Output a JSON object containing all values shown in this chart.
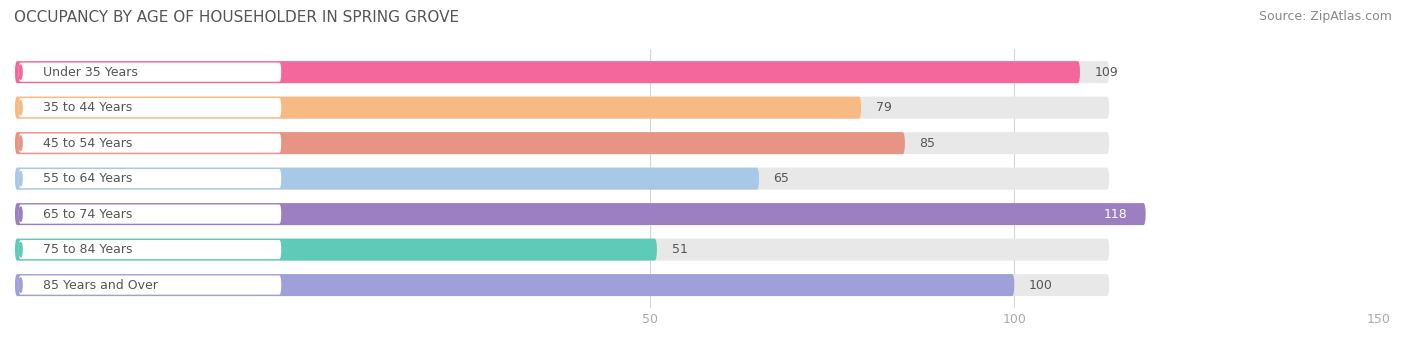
{
  "title": "OCCUPANCY BY AGE OF HOUSEHOLDER IN SPRING GROVE",
  "source": "Source: ZipAtlas.com",
  "categories": [
    "Under 35 Years",
    "35 to 44 Years",
    "45 to 54 Years",
    "55 to 64 Years",
    "65 to 74 Years",
    "75 to 84 Years",
    "85 Years and Over"
  ],
  "values": [
    109,
    79,
    85,
    65,
    118,
    51,
    100
  ],
  "bar_colors": [
    "#F4679D",
    "#F7BA82",
    "#E89484",
    "#A8C8E8",
    "#9B7FC0",
    "#5ECAB8",
    "#A0A0D8"
  ],
  "dot_colors": [
    "#F4679D",
    "#F7BA82",
    "#E89484",
    "#A8C8E8",
    "#9B7FC0",
    "#5ECAB8",
    "#A0A0D8"
  ],
  "bar_bg_color": "#E8E8E8",
  "white_label_bg": "#FFFFFF",
  "xlim_data": [
    0,
    150
  ],
  "xticks": [
    50,
    100,
    150
  ],
  "value_label_inside": [
    false,
    false,
    false,
    false,
    true,
    false,
    false
  ],
  "title_fontsize": 11,
  "source_fontsize": 9,
  "tick_fontsize": 9,
  "bar_label_fontsize": 9,
  "cat_label_fontsize": 9,
  "background_color": "#ffffff",
  "grid_color": "#cccccc",
  "title_color": "#555555",
  "source_color": "#888888",
  "tick_color": "#aaaaaa",
  "value_color_outside": "#555555",
  "value_color_inside": "#ffffff"
}
